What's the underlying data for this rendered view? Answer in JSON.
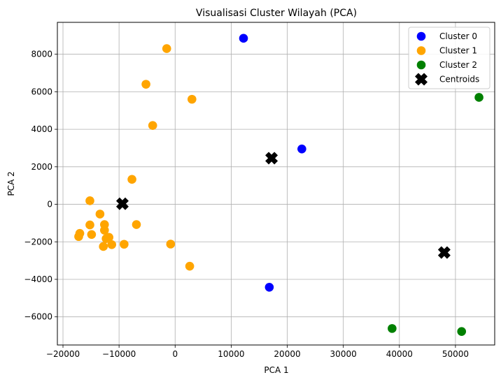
{
  "chart_data": {
    "type": "scatter",
    "title": "Visualisasi Cluster Wilayah (PCA)",
    "xlabel": "PCA 1",
    "ylabel": "PCA 2",
    "xlim": [
      -21000,
      57000
    ],
    "ylim": [
      -7500,
      9700
    ],
    "xticks": [
      -20000,
      -10000,
      0,
      10000,
      20000,
      30000,
      40000,
      50000
    ],
    "yticks": [
      -6000,
      -4000,
      -2000,
      0,
      2000,
      4000,
      6000,
      8000
    ],
    "grid": true,
    "legend_position": "top-right",
    "series": [
      {
        "name": "Cluster 0",
        "color": "#0000ff",
        "marker": "circle",
        "points": [
          {
            "x": 12200,
            "y": 8850
          },
          {
            "x": 22600,
            "y": 2950
          },
          {
            "x": 16800,
            "y": -4420
          }
        ]
      },
      {
        "name": "Cluster 1",
        "color": "#ffa500",
        "marker": "circle",
        "points": [
          {
            "x": -1500,
            "y": 8300
          },
          {
            "x": -5200,
            "y": 6400
          },
          {
            "x": 3000,
            "y": 5600
          },
          {
            "x": -4000,
            "y": 4200
          },
          {
            "x": -7700,
            "y": 1330
          },
          {
            "x": -15200,
            "y": 190
          },
          {
            "x": -13400,
            "y": -520
          },
          {
            "x": -15200,
            "y": -1100
          },
          {
            "x": -12600,
            "y": -1080
          },
          {
            "x": -6900,
            "y": -1080
          },
          {
            "x": -17000,
            "y": -1550
          },
          {
            "x": -17200,
            "y": -1720
          },
          {
            "x": -14900,
            "y": -1610
          },
          {
            "x": -12600,
            "y": -1380
          },
          {
            "x": -11800,
            "y": -1760
          },
          {
            "x": -12300,
            "y": -1830
          },
          {
            "x": -11300,
            "y": -2150
          },
          {
            "x": -12800,
            "y": -2250
          },
          {
            "x": -9100,
            "y": -2130
          },
          {
            "x": -800,
            "y": -2120
          },
          {
            "x": 2600,
            "y": -3300
          }
        ]
      },
      {
        "name": "Cluster 2",
        "color": "#008000",
        "marker": "circle",
        "points": [
          {
            "x": 54200,
            "y": 5700
          },
          {
            "x": 38700,
            "y": -6620
          },
          {
            "x": 51100,
            "y": -6780
          }
        ]
      },
      {
        "name": "Centroids",
        "color": "#000000",
        "marker": "x",
        "points": [
          {
            "x": 17200,
            "y": 2460
          },
          {
            "x": -9400,
            "y": 30
          },
          {
            "x": 48000,
            "y": -2570
          }
        ]
      }
    ]
  }
}
